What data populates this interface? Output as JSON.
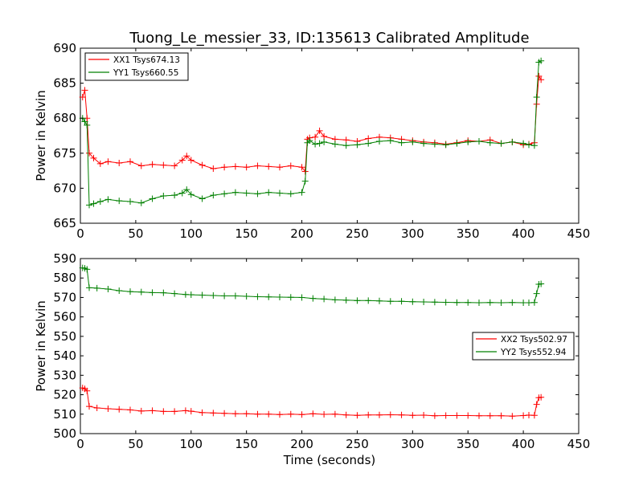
{
  "chart_data": [
    {
      "type": "line",
      "title": "Tuong_Le_messier_33, ID:135613 Calibrated Amplitude",
      "xlabel": "",
      "ylabel": "Power in Kelvin",
      "xlim": [
        0,
        450
      ],
      "ylim": [
        665,
        690
      ],
      "x_ticks": [
        "0",
        "50",
        "100",
        "150",
        "200",
        "250",
        "300",
        "350",
        "400",
        "450"
      ],
      "y_ticks": [
        "665",
        "670",
        "675",
        "680",
        "685",
        "690"
      ],
      "legend_position": "top-left",
      "series": [
        {
          "name": "XX1 Tsys674.13",
          "color": "#ff0000",
          "x": [
            2,
            4,
            6,
            8,
            12,
            18,
            25,
            35,
            45,
            55,
            65,
            75,
            85,
            92,
            96,
            100,
            110,
            120,
            130,
            140,
            150,
            160,
            170,
            180,
            190,
            200,
            203,
            205,
            207,
            212,
            216,
            220,
            230,
            240,
            250,
            260,
            270,
            280,
            290,
            300,
            310,
            320,
            330,
            340,
            350,
            360,
            370,
            380,
            390,
            400,
            405,
            410,
            412,
            414,
            416
          ],
          "y": [
            683,
            684,
            680,
            675,
            674.3,
            673.5,
            673.8,
            673.6,
            673.8,
            673.2,
            673.4,
            673.3,
            673.2,
            674,
            674.6,
            674,
            673.3,
            672.8,
            673,
            673.1,
            673,
            673.2,
            673.1,
            673,
            673.2,
            673,
            672.4,
            677,
            677.2,
            677.3,
            678.2,
            677.4,
            677,
            676.9,
            676.7,
            677.1,
            677.3,
            677.2,
            677,
            676.8,
            676.6,
            676.5,
            676.3,
            676.5,
            676.8,
            676.7,
            676.9,
            676.4,
            676.6,
            676.2,
            676.3,
            676.5,
            682,
            686,
            685.5
          ]
        },
        {
          "name": "YY1 Tsys660.55",
          "color": "#008000",
          "x": [
            2,
            4,
            6,
            8,
            12,
            18,
            25,
            35,
            45,
            55,
            65,
            75,
            85,
            92,
            96,
            100,
            110,
            120,
            130,
            140,
            150,
            160,
            170,
            180,
            190,
            200,
            203,
            205,
            207,
            212,
            216,
            220,
            230,
            240,
            250,
            260,
            270,
            280,
            290,
            300,
            310,
            320,
            330,
            340,
            350,
            360,
            370,
            380,
            390,
            400,
            405,
            410,
            412,
            414,
            416
          ],
          "y": [
            680,
            679.5,
            679,
            667.6,
            667.8,
            668.1,
            668.4,
            668.2,
            668.1,
            667.9,
            668.5,
            668.9,
            669,
            669.3,
            669.8,
            669.1,
            668.5,
            669,
            669.2,
            669.4,
            669.3,
            669.2,
            669.4,
            669.3,
            669.2,
            669.4,
            671,
            676.5,
            676.8,
            676.3,
            676.4,
            676.6,
            676.3,
            676.1,
            676.2,
            676.4,
            676.7,
            676.8,
            676.5,
            676.6,
            676.4,
            676.3,
            676.2,
            676.4,
            676.6,
            676.7,
            676.5,
            676.4,
            676.6,
            676.4,
            676.2,
            676.1,
            683,
            688,
            688.2
          ]
        }
      ]
    },
    {
      "type": "line",
      "title": "",
      "xlabel": "Time (seconds)",
      "ylabel": "Power in Kelvin",
      "xlim": [
        0,
        450
      ],
      "ylim": [
        500,
        590
      ],
      "x_ticks": [
        "0",
        "50",
        "100",
        "150",
        "200",
        "250",
        "300",
        "350",
        "400",
        "450"
      ],
      "y_ticks": [
        "500",
        "510",
        "520",
        "530",
        "540",
        "550",
        "560",
        "570",
        "580",
        "590"
      ],
      "legend_position": "center-right",
      "series": [
        {
          "name": "XX2 Tsys502.97",
          "color": "#ff0000",
          "x": [
            2,
            4,
            6,
            8,
            15,
            25,
            35,
            45,
            55,
            65,
            75,
            85,
            95,
            100,
            110,
            120,
            130,
            140,
            150,
            160,
            170,
            180,
            190,
            200,
            210,
            220,
            230,
            240,
            250,
            260,
            270,
            280,
            290,
            300,
            310,
            320,
            330,
            340,
            350,
            360,
            370,
            380,
            390,
            400,
            405,
            410,
            412,
            414,
            416
          ],
          "y": [
            523.5,
            523,
            522,
            514,
            513.2,
            512.8,
            512.5,
            512.2,
            511.6,
            511.8,
            511.4,
            511.4,
            511.8,
            511.5,
            510.8,
            510.6,
            510.4,
            510.2,
            510.2,
            510.0,
            510.0,
            509.8,
            510.0,
            509.8,
            510.2,
            509.9,
            510.0,
            509.6,
            509.4,
            509.6,
            509.6,
            509.7,
            509.6,
            509.4,
            509.5,
            509.2,
            509.3,
            509.3,
            509.3,
            509.2,
            509.2,
            509.2,
            509.0,
            509.3,
            509.5,
            509.4,
            515,
            518.5,
            518.7
          ]
        },
        {
          "name": "YY2 Tsys552.94",
          "color": "#008000",
          "x": [
            2,
            4,
            6,
            8,
            15,
            25,
            35,
            45,
            55,
            65,
            75,
            85,
            95,
            100,
            110,
            120,
            130,
            140,
            150,
            160,
            170,
            180,
            190,
            200,
            210,
            220,
            230,
            240,
            250,
            260,
            270,
            280,
            290,
            300,
            310,
            320,
            330,
            340,
            350,
            360,
            370,
            380,
            390,
            400,
            405,
            410,
            412,
            414,
            416
          ],
          "y": [
            585.2,
            585,
            584.5,
            575,
            574.8,
            574.3,
            573.5,
            573,
            572.8,
            572.5,
            572.4,
            572.0,
            571.5,
            571.4,
            571.2,
            571.0,
            570.8,
            570.8,
            570.6,
            570.4,
            570.3,
            570.2,
            570.1,
            570.0,
            569.5,
            569.2,
            568.8,
            568.6,
            568.4,
            568.4,
            568.2,
            568.0,
            568.0,
            567.8,
            567.7,
            567.6,
            567.5,
            567.4,
            567.4,
            567.3,
            567.4,
            567.3,
            567.4,
            567.3,
            567.3,
            567.4,
            572,
            576.8,
            577
          ]
        }
      ]
    }
  ]
}
